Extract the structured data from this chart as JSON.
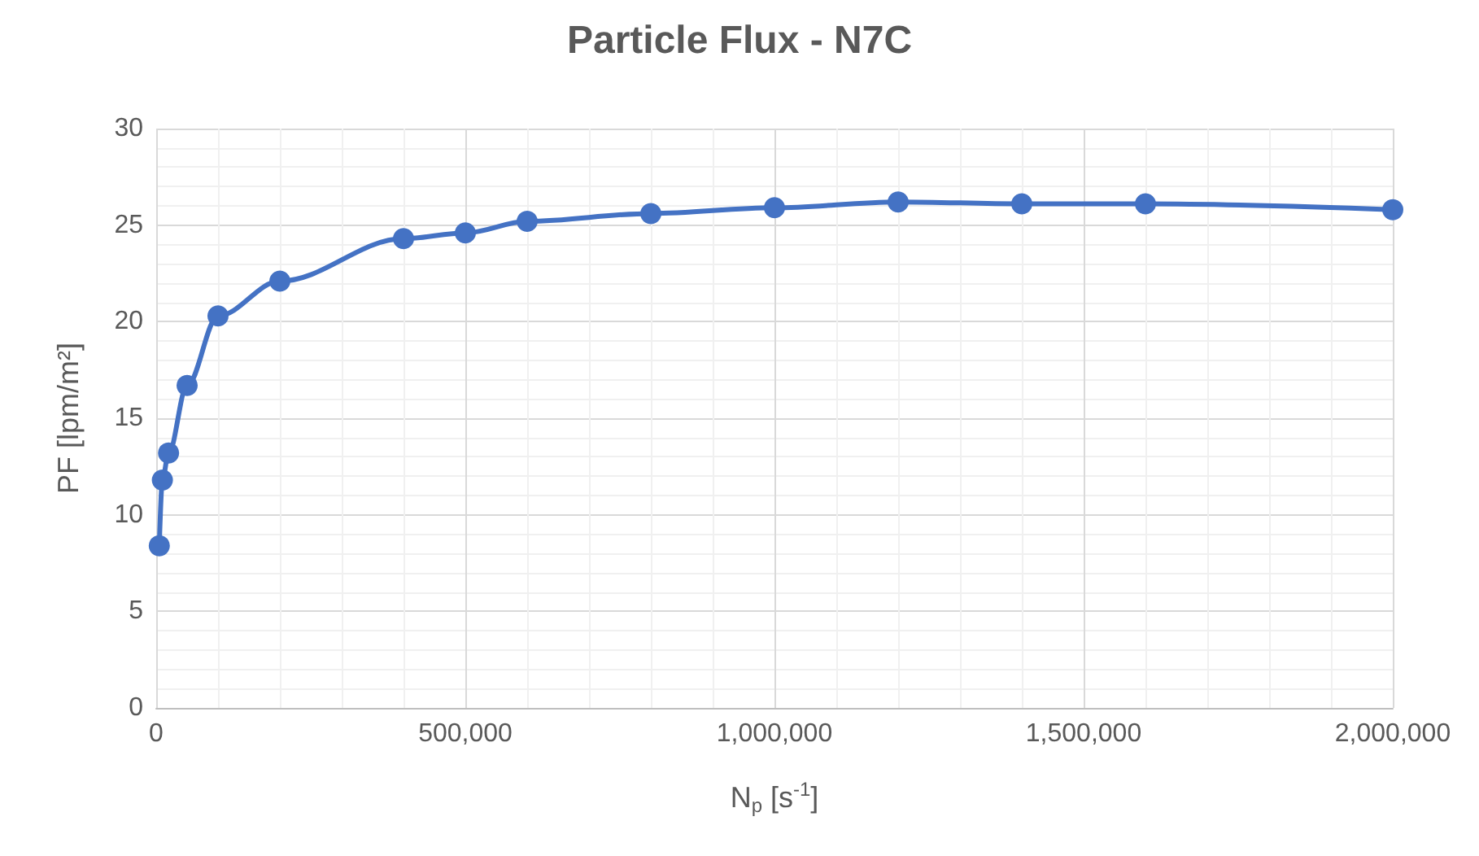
{
  "chart_data": {
    "type": "line",
    "title": "Particle Flux - N7C",
    "xlabel": "N$_{p}$ [s$^{-1}$]",
    "ylabel": "PF [lpm/m²]",
    "series": [
      {
        "color": "#4472c4",
        "x": [
          5000,
          10000,
          20000,
          50000,
          100000,
          200000,
          400000,
          500000,
          600000,
          800000,
          1000000,
          1200000,
          1400000,
          1600000,
          2000000
        ],
        "values": [
          8.4,
          11.8,
          13.2,
          16.7,
          20.3,
          22.1,
          24.3,
          24.6,
          25.2,
          25.6,
          25.9,
          26.2,
          26.1,
          26.1,
          25.8
        ]
      }
    ],
    "xlim": [
      0,
      2000000
    ],
    "xticks": [
      0,
      {
        "value": 500000,
        "label": "500,000"
      },
      {
        "value": 1000000,
        "label": "1,000,000"
      },
      {
        "value": 1500000,
        "label": "1,500,000"
      },
      {
        "value": 2000000,
        "label": "2,000,000"
      }
    ],
    "ylim": [
      0,
      30
    ],
    "yticks": [
      0,
      5,
      10,
      15,
      20,
      25,
      30
    ],
    "grid": true,
    "marker": "circle",
    "line_style": "solid"
  }
}
